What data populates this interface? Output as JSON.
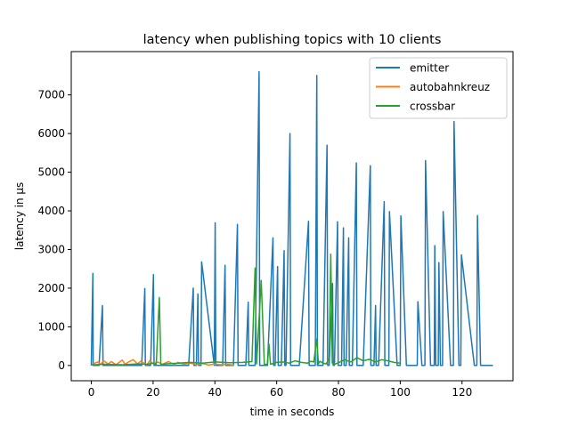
{
  "chart_data": {
    "type": "line",
    "title": "latency when publishing topics with 10 clients",
    "xlabel": "time in seconds",
    "ylabel": "latency in µs",
    "xlim": [
      -6.5,
      136.5
    ],
    "ylim": [
      -395,
      8120
    ],
    "xticks": [
      0,
      20,
      40,
      60,
      80,
      100,
      120
    ],
    "yticks": [
      0,
      1000,
      2000,
      3000,
      4000,
      5000,
      6000,
      7000
    ],
    "grid": false,
    "legend_position": "top-right",
    "series": [
      {
        "name": "emitter",
        "color": "#1f77b4",
        "x": [
          0,
          0.5,
          0.6,
          2.5,
          3.6,
          3.8,
          5,
          16.3,
          17.3,
          17.5,
          19.2,
          20.1,
          20.3,
          31.5,
          33,
          33.2,
          34,
          34.5,
          34.7,
          35.5,
          35.7,
          39.8,
          40.1,
          40.3,
          42.5,
          43.3,
          43.5,
          46,
          47.3,
          47.5,
          50,
          50.8,
          51,
          53,
          54.3,
          54.5,
          57,
          58.8,
          59,
          59.5,
          60.3,
          60.5,
          61.5,
          62.4,
          62.6,
          63,
          64.3,
          64.5,
          67.3,
          70.3,
          70.5,
          72.5,
          73,
          73.2,
          75,
          76.3,
          76.5,
          77,
          78.1,
          78.3,
          78.7,
          79.7,
          79.9,
          81,
          81.6,
          81.8,
          82.5,
          83.3,
          83.5,
          84.5,
          85.8,
          86,
          88,
          90.3,
          90.5,
          91.5,
          92,
          92.2,
          93,
          94.8,
          95,
          96.3,
          96.5,
          99,
          100,
          100.2,
          102,
          105.5,
          105.7,
          107,
          108,
          108.2,
          109.8,
          111,
          111.2,
          111.5,
          112.3,
          112.5,
          113,
          113.7,
          113.9,
          116.3,
          117.2,
          117.4,
          119,
          119.6,
          119.8,
          124,
          124.8,
          125,
          126,
          130
        ],
        "y": [
          0,
          2380,
          0,
          0,
          1550,
          0,
          0,
          0,
          1990,
          0,
          0,
          2350,
          0,
          0,
          2000,
          0,
          0,
          1850,
          0,
          0,
          2680,
          0,
          3690,
          0,
          0,
          2590,
          0,
          0,
          3650,
          0,
          0,
          1640,
          0,
          0,
          7600,
          0,
          0,
          3300,
          0,
          0,
          2560,
          0,
          0,
          2970,
          0,
          0,
          6000,
          0,
          0,
          3730,
          0,
          0,
          7500,
          0,
          0,
          5700,
          0,
          0,
          2120,
          0,
          0,
          3720,
          0,
          0,
          3560,
          0,
          0,
          3300,
          0,
          0,
          5240,
          0,
          0,
          5170,
          0,
          0,
          1550,
          0,
          0,
          4240,
          0,
          0,
          3980,
          0,
          0,
          3870,
          0,
          0,
          1650,
          0,
          0,
          5300,
          0,
          0,
          3100,
          0,
          0,
          2660,
          0,
          0,
          3980,
          0,
          0,
          6310,
          0,
          0,
          2860,
          0,
          0,
          3880,
          0,
          0
        ]
      },
      {
        "name": "autobahnkreuz",
        "color": "#ff7f0e",
        "x": [
          0,
          2,
          3,
          4,
          5.5,
          6.5,
          8,
          10,
          11,
          12,
          13.5,
          15,
          16,
          18,
          19,
          20,
          21.5,
          23,
          25,
          27,
          28,
          30,
          32,
          34,
          36,
          38,
          40,
          42,
          44,
          46
        ],
        "y": [
          20,
          90,
          30,
          120,
          40,
          100,
          20,
          140,
          30,
          90,
          150,
          40,
          110,
          20,
          130,
          40,
          90,
          30,
          100,
          20,
          80,
          30,
          60,
          20,
          50,
          10,
          40,
          20,
          30,
          10
        ]
      },
      {
        "name": "crossbar",
        "color": "#2ca02c",
        "x": [
          0,
          5,
          10,
          15,
          18,
          20,
          21,
          22,
          22.5,
          24,
          28,
          32,
          36,
          40,
          45,
          49,
          52,
          53,
          53.5,
          55,
          56,
          57,
          57.5,
          58,
          60,
          62,
          64,
          66,
          68,
          70,
          71,
          72,
          73,
          73.5,
          74,
          75,
          76,
          77,
          77.5,
          78,
          79,
          80,
          82,
          84,
          86,
          88,
          90,
          92,
          94,
          96,
          98,
          100
        ],
        "y": [
          20,
          30,
          20,
          40,
          30,
          60,
          20,
          1760,
          20,
          40,
          60,
          80,
          60,
          90,
          70,
          80,
          100,
          2520,
          40,
          2200,
          20,
          40,
          550,
          30,
          80,
          90,
          60,
          120,
          80,
          60,
          110,
          90,
          680,
          40,
          110,
          60,
          40,
          180,
          2880,
          60,
          40,
          70,
          150,
          90,
          200,
          120,
          160,
          90,
          150,
          120,
          80,
          60
        ]
      }
    ]
  }
}
